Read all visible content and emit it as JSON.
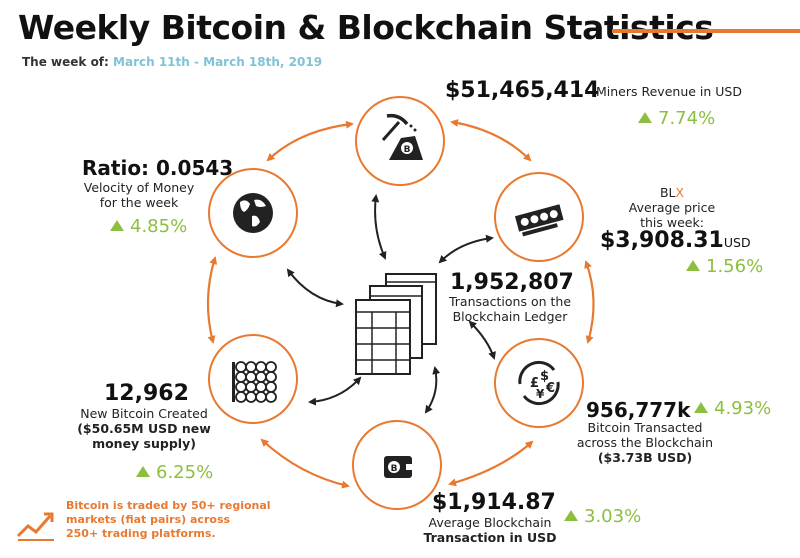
{
  "header": {
    "title": "Weekly Bitcoin & Blockchain Statistics",
    "week_label": "The week of:",
    "week_dates": "March 11th - March 18th, 2019"
  },
  "miners": {
    "value": "$51,465,414",
    "label": "Miners Revenue in USD",
    "change": "7.74%",
    "icon": "pickaxe-mining-icon"
  },
  "price": {
    "line1_prefix": "BL",
    "line1_accent": "X",
    "line2": "Average price",
    "line3": "this week:",
    "value": "$3,908.31",
    "unit": "USD",
    "change": "1.56%",
    "icon": "banknotes-icon"
  },
  "ratio": {
    "value": "Ratio: 0.0543",
    "line1": "Velocity of Money",
    "line2": "for the week",
    "change": "4.85%",
    "icon": "globe-icon"
  },
  "transactions": {
    "value": "1,952,807",
    "line1": "Transactions on the",
    "line2": "Blockchain Ledger",
    "icon": "ledger-icon"
  },
  "transacted": {
    "value": "956,777k",
    "change": "4.93%",
    "line1": "Bitcoin Transacted",
    "line2": "across the Blockchain",
    "line3": "($3.73B USD)",
    "icon": "currency-exchange-icon"
  },
  "created": {
    "value": "12,962",
    "line1": "New Bitcoin Created",
    "line2": "($50.65M USD new",
    "line3": "money supply)",
    "change": "6.25%",
    "icon": "coin-stacks-icon"
  },
  "avg_tx": {
    "value": "$1,914.87",
    "line1": "Average Blockchain",
    "line2": "Transaction in USD",
    "change": "3.03%",
    "icon": "wallet-icon"
  },
  "footnote": {
    "line1": "Bitcoin is traded by 50+ regional",
    "line2": "markets (fiat pairs) across",
    "line3": "250+ trading platforms.",
    "icon": "trend-chart-icon"
  },
  "colors": {
    "accent": "#e8792f",
    "positive": "#8cbf3f",
    "date": "#7fc3d6"
  }
}
